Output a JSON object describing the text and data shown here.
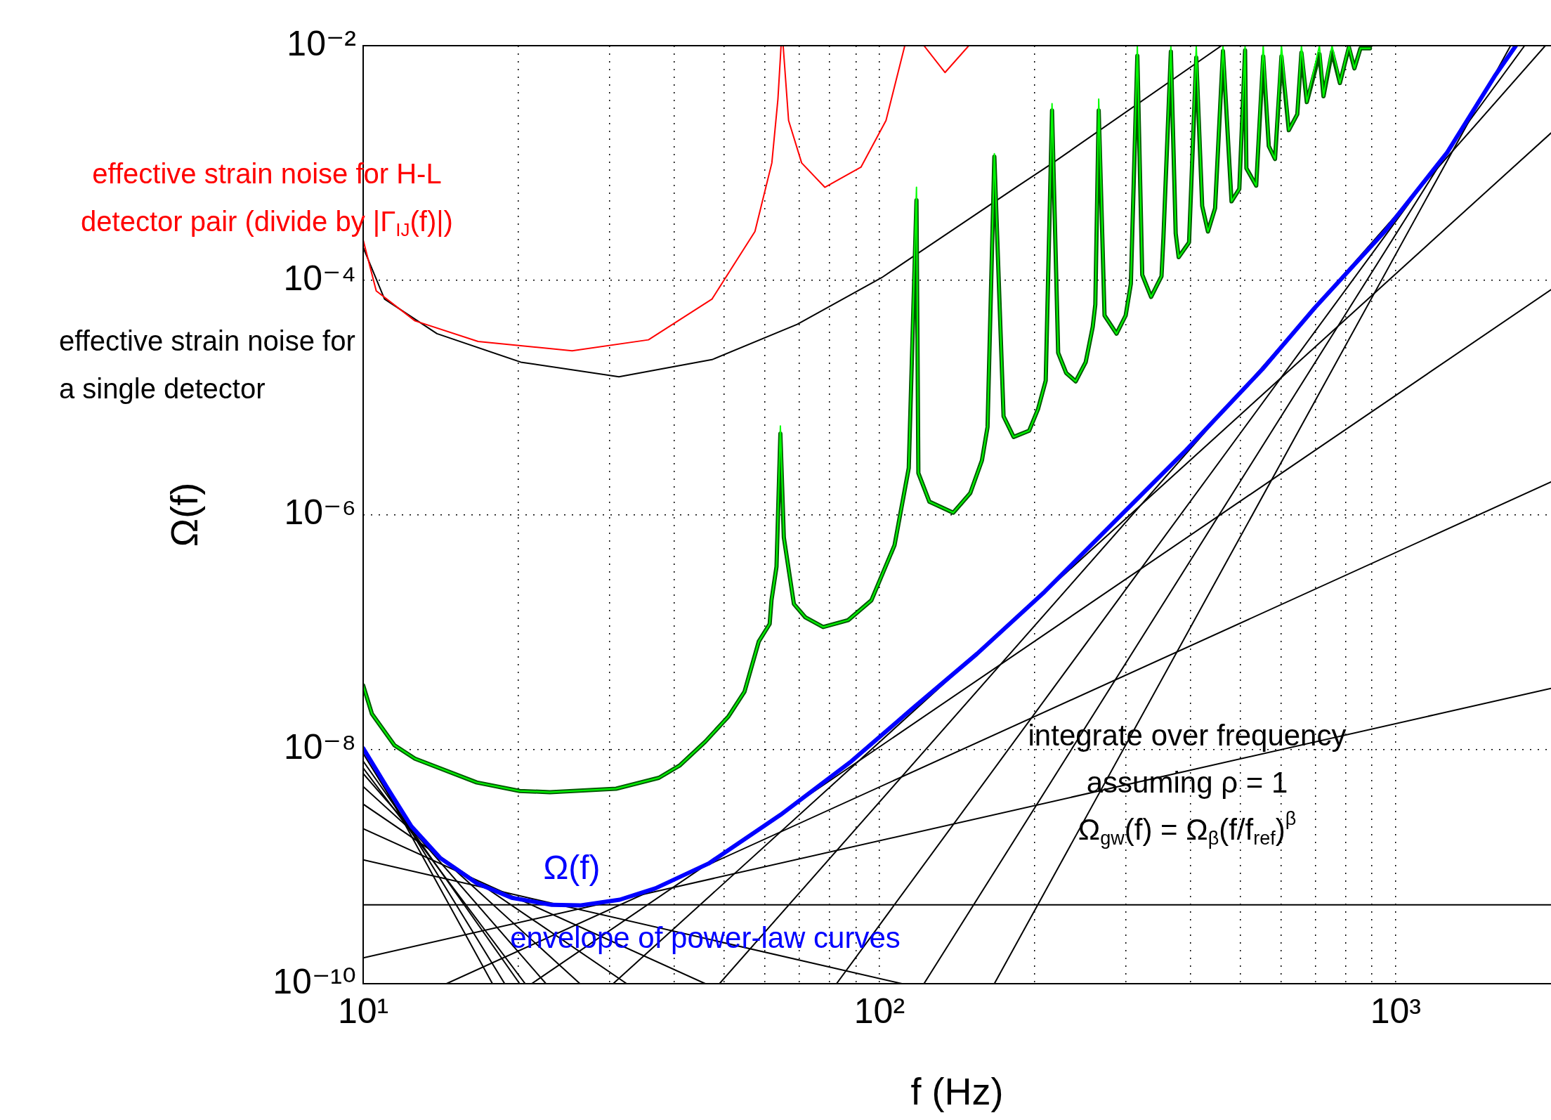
{
  "chart_data": {
    "type": "line",
    "xlabel": "f (Hz)",
    "ylabel": "Ω(f)",
    "log": "xy",
    "grid": true,
    "legend": false,
    "marker": "none",
    "line_style": "solid",
    "xlim": [
      10,
      2000
    ],
    "ylim": [
      1e-10,
      0.01
    ],
    "xticks": [
      {
        "value": 10,
        "label": "10¹"
      },
      {
        "value": 20,
        "label": null
      },
      {
        "value": 30,
        "label": null
      },
      {
        "value": 40,
        "label": null
      },
      {
        "value": 50,
        "label": null
      },
      {
        "value": 60,
        "label": null
      },
      {
        "value": 70,
        "label": null
      },
      {
        "value": 80,
        "label": null
      },
      {
        "value": 90,
        "label": null
      },
      {
        "value": 100,
        "label": "10²"
      },
      {
        "value": 200,
        "label": null
      },
      {
        "value": 300,
        "label": null
      },
      {
        "value": 400,
        "label": null
      },
      {
        "value": 500,
        "label": null
      },
      {
        "value": 600,
        "label": null
      },
      {
        "value": 700,
        "label": null
      },
      {
        "value": 800,
        "label": null
      },
      {
        "value": 900,
        "label": null
      },
      {
        "value": 1000,
        "label": "10³"
      }
    ],
    "yticks": [
      {
        "value": 1e-10,
        "label": "10⁻¹⁰"
      },
      {
        "value": 1e-08,
        "label": "10⁻⁸"
      },
      {
        "value": 1e-06,
        "label": "10⁻⁶"
      },
      {
        "value": 0.0001,
        "label": "10⁻⁴"
      },
      {
        "value": 0.01,
        "label": "10⁻²"
      }
    ],
    "annotations": [
      "envelope of power-law curves",
      "integrate over frequency",
      "assuming ρ = 1",
      "Ω$_{gw}$(f) = Ω$_{β}$(f/f$_{ref}$)$^{β}$"
    ],
    "series": [
      {
        "name": "effective strain noise for H-L detector pair (divide by |Γ$_{IJ}$(f)|)",
        "color": "#ff0000",
        "x": [
          10,
          10.6,
          12.6,
          16.7,
          25.4,
          35.7,
          47.4,
          57.4,
          61.9,
          63.6,
          64.5,
          64.8,
          65.1,
          66.7,
          70.7,
          78.4,
          92.1,
          103,
          112,
          117,
          122,
          134,
          149
        ],
        "values": [
          0.00022,
          8.1e-05,
          4.5e-05,
          3e-05,
          2.5e-05,
          3.1e-05,
          6.9e-05,
          0.00026,
          0.001,
          0.0035,
          0.01,
          null,
          0.01,
          0.0023,
          0.001,
          0.00062,
          0.00092,
          0.0023,
          0.01,
          null,
          0.01,
          0.0059,
          0.01
        ]
      },
      {
        "name": "effective strain noise for a single detector",
        "color": "#000000",
        "x": [
          10,
          11.0,
          13.9,
          20.2,
          31.3,
          47.4,
          69.3,
          101,
          185,
          216,
          460
        ],
        "values": [
          0.00019,
          6.9e-05,
          3.5e-05,
          2e-05,
          1.5e-05,
          2.1e-05,
          4.2e-05,
          0.000105,
          0.00063,
          0.00099,
          0.01
        ]
      },
      {
        "name": "Ω(f)",
        "color": "#0000ff",
        "x": [
          10,
          11.1,
          12.4,
          14.1,
          16.6,
          19.4,
          23.2,
          26.3,
          31.4,
          36.8,
          46.7,
          64.3,
          88.3,
          115.6,
          154.5,
          209,
          283,
          390,
          552,
          697,
          951,
          1259,
          1556,
          1710
        ],
        "values": [
          1.02e-08,
          4.8e-09,
          2.2e-09,
          1.18e-09,
          7.2e-10,
          5.4e-10,
          4.7e-10,
          4.65e-10,
          5.2e-10,
          6.5e-10,
          1.06e-09,
          2.75e-09,
          7.9e-09,
          2.2e-08,
          6.5e-08,
          2.2e-07,
          8.4e-07,
          3.44e-06,
          1.74e-05,
          5.8e-05,
          0.000258,
          0.00123,
          0.0055,
          0.01
        ]
      },
      {
        "color": "#00ff00",
        "x": [
          10,
          10.4,
          11.5,
          12.6,
          16.6,
          20.1,
          23.0,
          30.9,
          37.4,
          41.1,
          46.0,
          51.0,
          54.8,
          58.4,
          61.3,
          61.8,
          63.2,
          64.3,
          65.3,
          68.3,
          71.9,
          77.8,
          87.0,
          96.5,
          107,
          114,
          118,
          119,
          125,
          139,
          150,
          158,
          162,
          167,
          174,
          182,
          195,
          203,
          210,
          216,
          222,
          230,
          240,
          251,
          259,
          262,
          266,
          273,
          288,
          300,
          307,
          316,
          323,
          336,
          352,
          355,
          367,
          375,
          380,
          398,
          411,
          422,
          433,
          447,
          463,
          481,
          498,
          511,
          514,
          537,
          554,
          568,
          584,
          601,
          621,
          645,
          657,
          673,
          712,
          725,
          753,
          780,
          812,
          832,
          855,
          892
        ],
        "values": [
          3.5e-08,
          2e-08,
          1.08e-08,
          8.3e-09,
          5.2e-09,
          4.4e-09,
          4.3e-09,
          4.6e-09,
          5.7e-09,
          7.3e-09,
          1.16e-08,
          1.9e-08,
          3.1e-08,
          8.3e-08,
          1.17e-07,
          1.86e-07,
          3.6e-07,
          5.7e-06,
          6.4e-07,
          1.73e-07,
          1.33e-07,
          1.1e-07,
          1.26e-07,
          1.86e-07,
          5.5e-07,
          2.5e-06,
          0.00062,
          2.26e-06,
          1.29e-06,
          1.04e-06,
          1.53e-06,
          2.9e-06,
          5.6e-06,
          0.0012,
          6.9e-06,
          4.6e-06,
          5.2e-06,
          8e-06,
          1.39e-05,
          0.0032,
          2.4e-05,
          1.62e-05,
          1.37e-05,
          2e-05,
          4e-05,
          6.2e-05,
          0.0035,
          5e-05,
          3.5e-05,
          5e-05,
          9.3e-05,
          0.01,
          0.000111,
          7.2e-05,
          0.000108,
          0.00023,
          0.01,
          0.00025,
          0.000157,
          0.00021,
          0.01,
          0.00043,
          0.00026,
          0.00041,
          0.01,
          0.00047,
          0.0006,
          0.01,
          0.0009,
          0.00064,
          0.01,
          0.00139,
          0.00108,
          0.01,
          0.0019,
          0.0026,
          0.01,
          0.0033,
          0.01,
          0.0037,
          0.01,
          0.0048,
          0.01,
          0.0064,
          0.0095,
          0.0095
        ]
      },
      {
        "color": "#005a00",
        "x": [
          10,
          10.4,
          11.5,
          12.6,
          16.6,
          20.1,
          23.0,
          30.9,
          37.4,
          41.1,
          46.0,
          51.0,
          54.8,
          58.4,
          61.3,
          61.8,
          63.2,
          64.3,
          65.3,
          68.3,
          71.9,
          77.8,
          87.0,
          96.5,
          107,
          114,
          118,
          119,
          125,
          139,
          150,
          158,
          162,
          167,
          174,
          182,
          195,
          203,
          210,
          216,
          222,
          230,
          240,
          251,
          259,
          262,
          266,
          273,
          288,
          300,
          307,
          316,
          323,
          336,
          352,
          355,
          367,
          375,
          380,
          398,
          411,
          422,
          433,
          447,
          463,
          481,
          498,
          511,
          514,
          537,
          554,
          568,
          584,
          601,
          621,
          645,
          657,
          673,
          712,
          725,
          753,
          780,
          812,
          832,
          855,
          892
        ],
        "values": [
          3.5e-08,
          2e-08,
          1.08e-08,
          8.3e-09,
          5.2e-09,
          4.4e-09,
          4.3e-09,
          4.6e-09,
          5.7e-09,
          7.3e-09,
          1.16e-08,
          1.9e-08,
          3.1e-08,
          8.3e-08,
          1.17e-07,
          1.86e-07,
          3.6e-07,
          4.9e-06,
          6.4e-07,
          1.73e-07,
          1.33e-07,
          1.1e-07,
          1.26e-07,
          1.86e-07,
          5.5e-07,
          2.5e-06,
          0.00048,
          2.26e-06,
          1.29e-06,
          1.04e-06,
          1.53e-06,
          2.9e-06,
          5.6e-06,
          0.00113,
          6.9e-06,
          4.6e-06,
          5.2e-06,
          8e-06,
          1.39e-05,
          0.0028,
          2.4e-05,
          1.62e-05,
          1.37e-05,
          2e-05,
          4e-05,
          6.2e-05,
          0.0028,
          5e-05,
          3.5e-05,
          5e-05,
          9.3e-05,
          0.0082,
          0.000111,
          7.2e-05,
          0.000108,
          0.00023,
          0.0089,
          0.00025,
          0.000157,
          0.00021,
          0.0079,
          0.00043,
          0.00026,
          0.00041,
          0.009,
          0.00047,
          0.0006,
          0.0091,
          0.0009,
          0.00064,
          0.0081,
          0.00139,
          0.00108,
          0.0081,
          0.0019,
          0.0026,
          0.0087,
          0.0033,
          0.0085,
          0.0037,
          0.0089,
          0.0048,
          0.0097,
          0.0064,
          0.0095,
          0.0095
        ]
      },
      {
        "color": "#000000",
        "x": [
          10,
          17.8
        ],
        "values": [
          1.02e-08,
          1e-10
        ]
      },
      {
        "color": "#000000",
        "x": [
          10,
          18.8
        ],
        "values": [
          9.2e-09,
          1e-10
        ]
      },
      {
        "color": "#000000",
        "x": [
          10,
          20.1
        ],
        "values": [
          7.9e-09,
          1e-10
        ]
      },
      {
        "color": "#000000",
        "x": [
          10,
          20.6
        ],
        "values": [
          6.9e-09,
          1e-10
        ]
      },
      {
        "color": "#000000",
        "x": [
          10,
          22.6
        ],
        "values": [
          6.2e-09,
          1e-10
        ]
      },
      {
        "color": "#000000",
        "x": [
          10,
          26.3
        ],
        "values": [
          4.8e-09,
          1e-10
        ]
      },
      {
        "color": "#000000",
        "x": [
          10,
          32.4
        ],
        "values": [
          3.4e-09,
          1e-10
        ]
      },
      {
        "color": "#000000",
        "x": [
          10,
          46.0
        ],
        "values": [
          2.1e-09,
          1e-10
        ]
      },
      {
        "color": "#000000",
        "x": [
          10,
          110.6
        ],
        "values": [
          1.14e-09,
          1e-10
        ]
      },
      {
        "color": "#000000",
        "x": [
          10,
          2000
        ],
        "values": [
          4.7e-10,
          4.7e-10
        ]
      },
      {
        "color": "#000000",
        "x": [
          10,
          2000
        ],
        "values": [
          1.66e-10,
          3.3e-08
        ]
      },
      {
        "color": "#000000",
        "x": [
          14.5,
          2000
        ],
        "values": [
          1e-10,
          1.9e-06
        ]
      },
      {
        "color": "#000000",
        "x": [
          21.2,
          2000
        ],
        "values": [
          1e-10,
          8.3e-05
        ]
      },
      {
        "color": "#000000",
        "x": [
          30.5,
          2000
        ],
        "values": [
          1e-10,
          0.0018
        ]
      },
      {
        "color": "#000000",
        "x": [
          49,
          1950
        ],
        "values": [
          1e-10,
          0.01
        ]
      },
      {
        "color": "#000000",
        "x": [
          82.6,
          1778
        ],
        "values": [
          1e-10,
          0.01
        ]
      },
      {
        "color": "#000000",
        "x": [
          122,
          1700
        ],
        "values": [
          1e-10,
          0.01
        ]
      },
      {
        "color": "#000000",
        "x": [
          167,
          1670
        ],
        "values": [
          1e-10,
          0.01
        ]
      }
    ]
  }
}
